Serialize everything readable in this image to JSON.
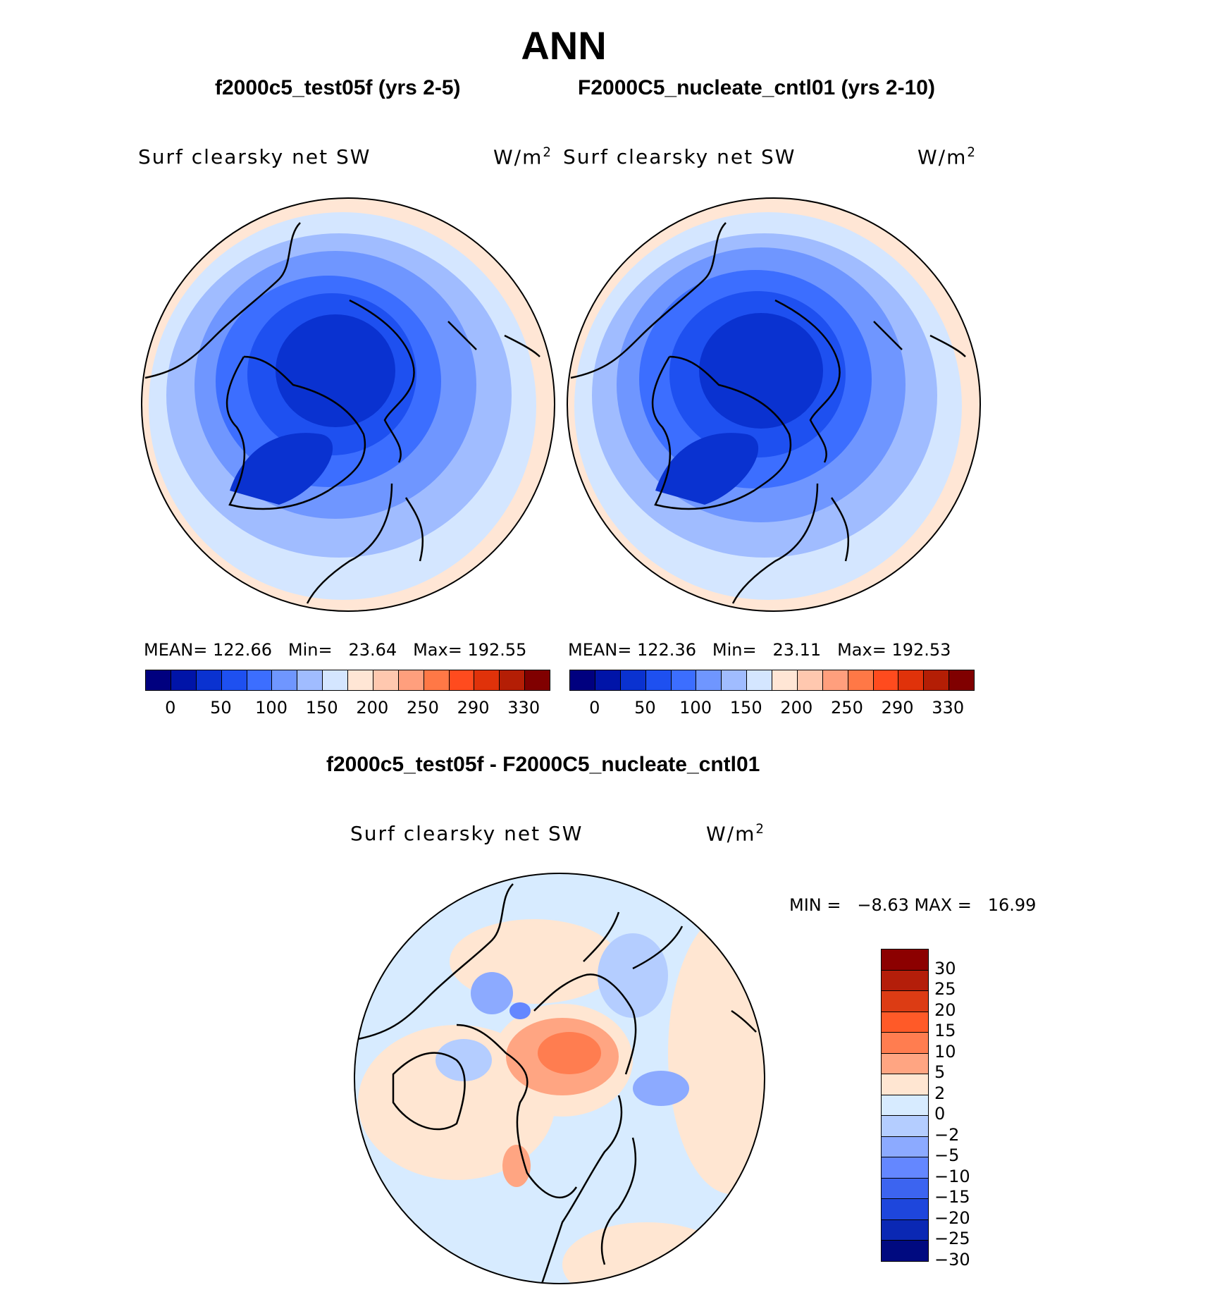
{
  "main_title": "ANN",
  "panels": [
    {
      "case_title": "f2000c5_test05f (yrs 2-5)",
      "var_label": "Surf clearsky net SW",
      "units": "W/m",
      "units_sup": "2",
      "stats": {
        "mean_label": "MEAN=",
        "mean": "122.66",
        "min_label": "Min=",
        "min": "23.64",
        "max_label": "Max=",
        "max": "192.55"
      }
    },
    {
      "case_title": "F2000C5_nucleate_cntl01 (yrs 2-10)",
      "var_label": "Surf clearsky net SW",
      "units": "W/m",
      "units_sup": "2",
      "stats": {
        "mean_label": "MEAN=",
        "mean": "122.36",
        "min_label": "Min=",
        "min": "23.11",
        "max_label": "Max=",
        "max": "192.53"
      }
    }
  ],
  "abs_colorbar": {
    "colors": [
      "#00007f",
      "#0014a8",
      "#0a32d0",
      "#1e50f0",
      "#3c6eff",
      "#6f96ff",
      "#a0bcff",
      "#d4e6ff",
      "#ffe6d5",
      "#ffc8af",
      "#ff9f7d",
      "#ff7846",
      "#ff4b1e",
      "#e0320a",
      "#b41e05",
      "#800000"
    ],
    "tick_labels": [
      "0",
      "50",
      "100",
      "150",
      "200",
      "250",
      "290",
      "330"
    ]
  },
  "diff": {
    "title": "f2000c5_test05f - F2000C5_nucleate_cntl01",
    "var_label": "Surf clearsky net SW",
    "units": "W/m",
    "units_sup": "2",
    "minmax_text": "MIN =   −8.63 MAX =   16.99",
    "colorbar": {
      "colors": [
        "#8c0000",
        "#b41e0a",
        "#dc3c14",
        "#ff5a28",
        "#ff7d50",
        "#ffa582",
        "#ffe6d2",
        "#d7ebff",
        "#b4cdff",
        "#8caaff",
        "#6487ff",
        "#3c64f0",
        "#1e46dc",
        "#0a28b4",
        "#000a80"
      ],
      "tick_labels": [
        "30",
        "25",
        "20",
        "15",
        "10",
        "5",
        "2",
        "0",
        "−2",
        "−5",
        "−10",
        "−15",
        "−20",
        "−25",
        "−30"
      ]
    }
  }
}
